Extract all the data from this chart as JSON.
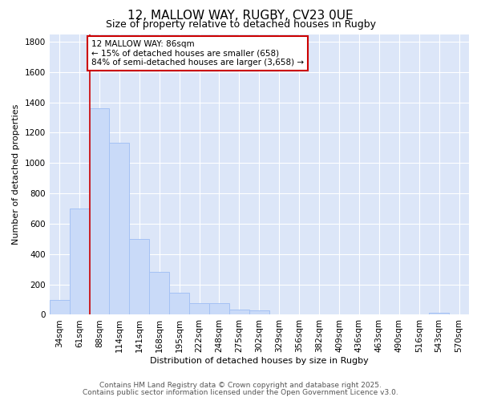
{
  "title1": "12, MALLOW WAY, RUGBY, CV23 0UE",
  "title2": "Size of property relative to detached houses in Rugby",
  "xlabel": "Distribution of detached houses by size in Rugby",
  "ylabel": "Number of detached properties",
  "bins": [
    "34sqm",
    "61sqm",
    "88sqm",
    "114sqm",
    "141sqm",
    "168sqm",
    "195sqm",
    "222sqm",
    "248sqm",
    "275sqm",
    "302sqm",
    "329sqm",
    "356sqm",
    "382sqm",
    "409sqm",
    "436sqm",
    "463sqm",
    "490sqm",
    "516sqm",
    "543sqm",
    "570sqm"
  ],
  "values": [
    100,
    700,
    1360,
    1135,
    500,
    280,
    145,
    75,
    75,
    35,
    30,
    5,
    5,
    5,
    5,
    2,
    2,
    2,
    2,
    15,
    2
  ],
  "bar_color": "#c9daf8",
  "bar_edge_color": "#a4c2f4",
  "red_line_bin_index": 2,
  "red_line_color": "#cc0000",
  "annotation_text": "12 MALLOW WAY: 86sqm\n← 15% of detached houses are smaller (658)\n84% of semi-detached houses are larger (3,658) →",
  "annotation_box_facecolor": "#ffffff",
  "annotation_box_edgecolor": "#cc0000",
  "ylim": [
    0,
    1850
  ],
  "yticks": [
    0,
    200,
    400,
    600,
    800,
    1000,
    1200,
    1400,
    1600,
    1800
  ],
  "chart_bg_color": "#dce6f8",
  "fig_bg_color": "#ffffff",
  "grid_color": "#ffffff",
  "footer1": "Contains HM Land Registry data © Crown copyright and database right 2025.",
  "footer2": "Contains public sector information licensed under the Open Government Licence v3.0.",
  "title1_fontsize": 11,
  "title2_fontsize": 9,
  "axis_label_fontsize": 8,
  "tick_fontsize": 7.5,
  "footer_fontsize": 6.5,
  "annotation_fontsize": 7.5
}
